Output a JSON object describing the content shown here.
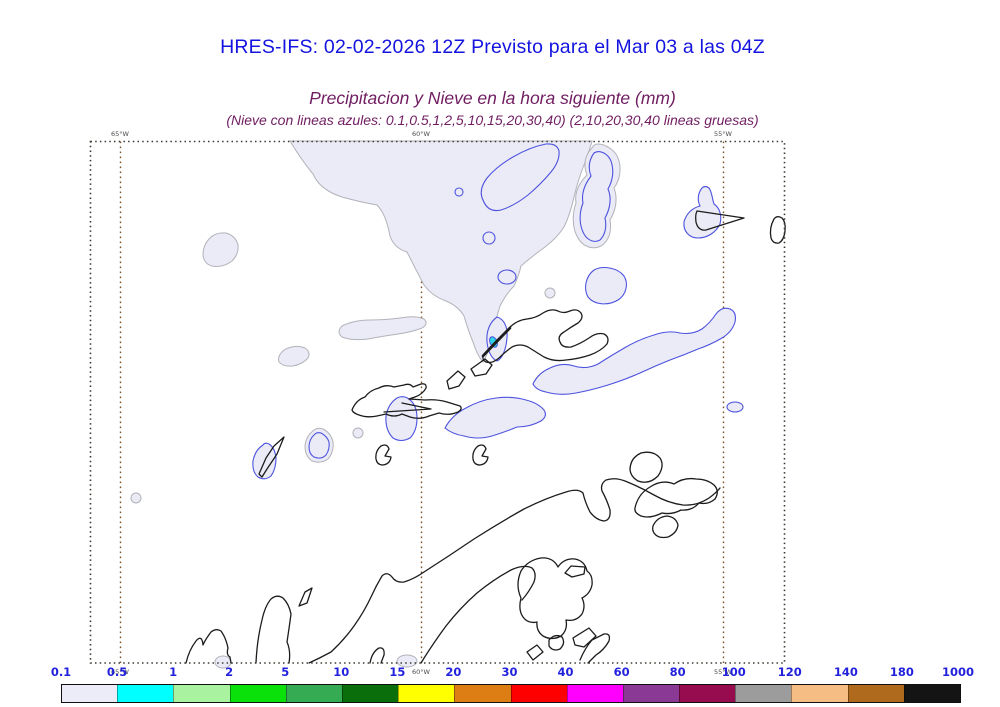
{
  "colors": {
    "title_blue": "#1414e0",
    "subtitle_magenta": "#701d62",
    "label_blue": "#2222dd",
    "frame": "#3c372e",
    "meridian_brown": "#7b5228",
    "coast_black": "#1c1c1c",
    "snow_blue": "#4d52de",
    "precip_fill": "#eaebf6",
    "precip_edge": "#b2b2ba",
    "cyan_spot": "#2ed3e6",
    "axis_label_gray": "#4a4a4a"
  },
  "header": {
    "title": "HRES-IFS: 02-02-2026 12Z Previsto para el Mar 03 a las 04Z",
    "subtitle": "Precipitacion y Nieve en la hora siguiente (mm)",
    "note": "(Nieve con lineas azules: 0.1,0.5,1,2,5,10,15,20,30,40)  (2,10,20,30,40 lineas gruesas)"
  },
  "map": {
    "meridians": [
      {
        "label": "65°W"
      },
      {
        "label": "60°W"
      },
      {
        "label": "55°W"
      }
    ],
    "features": [
      "light-precipitation-shaded-areas-0.1-0.5mm",
      "snow-contours-blue",
      "coastlines-black",
      "cyan-precipitation-cell-0.5-1mm"
    ]
  },
  "colorbar": {
    "unit": "mm",
    "labels": [
      "0.1",
      "0.5",
      "1",
      "2",
      "5",
      "10",
      "15",
      "20",
      "30",
      "40",
      "60",
      "80",
      "100",
      "120",
      "140",
      "180",
      "1000"
    ],
    "segment_colors": [
      "#ececf8",
      "#00ffff",
      "#a8f2a0",
      "#0ae00a",
      "#35ab53",
      "#0a6e0a",
      "#ffff00",
      "#dd7e14",
      "#ff0000",
      "#ff00ff",
      "#8a3a94",
      "#960c4e",
      "#9c9c9c",
      "#f5bc84",
      "#b06a1e",
      "#141414"
    ]
  }
}
